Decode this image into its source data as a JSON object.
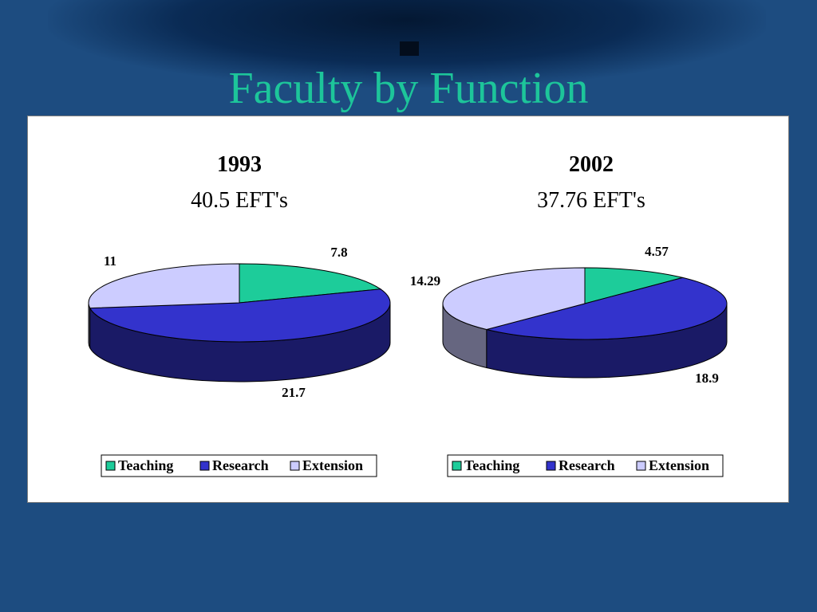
{
  "slide": {
    "title": "Faculty by Function"
  },
  "colors": {
    "background": "#1d4c80",
    "title": "#1dc59a",
    "teaching": "#1dcc9a",
    "research": "#3333cc",
    "extension": "#ccccff"
  },
  "chart_data": [
    {
      "type": "pie",
      "style": "3d",
      "title": "1993",
      "subtitle": "40.5 EFT's",
      "categories": [
        "Teaching",
        "Research",
        "Extension"
      ],
      "values": [
        7.8,
        21.7,
        11
      ],
      "data_labels": [
        "7.8",
        "21.7",
        "11"
      ],
      "legend": {
        "placement": "bottom",
        "entries": [
          "Teaching",
          "Research",
          "Extension"
        ]
      }
    },
    {
      "type": "pie",
      "style": "3d",
      "title": "2002",
      "subtitle": "37.76 EFT's",
      "categories": [
        "Teaching",
        "Research",
        "Extension"
      ],
      "values": [
        4.57,
        18.9,
        14.29
      ],
      "data_labels": [
        "4.57",
        "18.9",
        "14.29"
      ],
      "legend": {
        "placement": "bottom",
        "entries": [
          "Teaching",
          "Research",
          "Extension"
        ]
      }
    }
  ]
}
